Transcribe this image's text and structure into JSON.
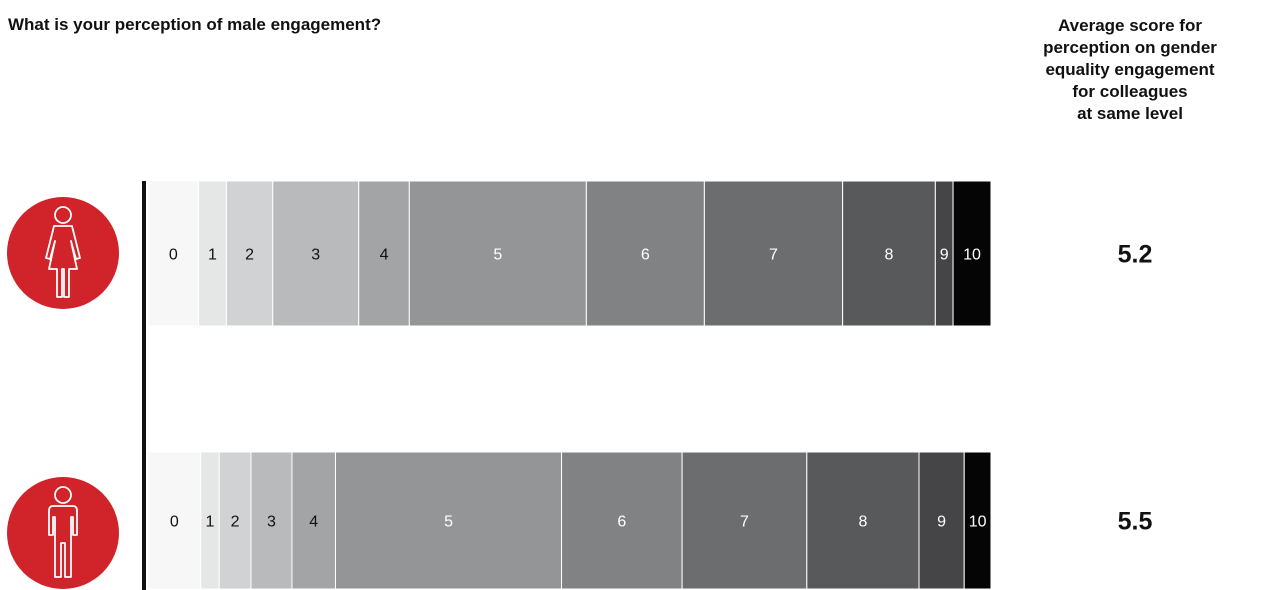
{
  "chart_data": {
    "type": "bar",
    "stacked": true,
    "orientation": "horizontal",
    "title": "What is your perception of male engagement?",
    "xlim": [
      0,
      100
    ],
    "grid": false,
    "categories": [
      "0",
      "1",
      "2",
      "3",
      "4",
      "5",
      "6",
      "7",
      "8",
      "9",
      "10"
    ],
    "rows": [
      {
        "icon": "female-person-icon",
        "values": [
          6.0,
          3.3,
          5.5,
          10.2,
          6.0,
          21.0,
          14.0,
          16.4,
          11.0,
          2.1,
          4.5
        ],
        "average": "5.2"
      },
      {
        "icon": "male-person-icon",
        "values": [
          6.3,
          2.2,
          3.8,
          4.9,
          5.2,
          27.0,
          14.4,
          14.9,
          13.4,
          5.4,
          3.2
        ],
        "average": "5.5"
      }
    ],
    "colors": [
      "#f7f7f7",
      "#e5e6e6",
      "#d1d2d3",
      "#b9babb",
      "#a3a4a6",
      "#939597",
      "#818284",
      "#6c6d6f",
      "#58595b",
      "#454547",
      "#050505"
    ],
    "label_colors": [
      "#111111",
      "#111111",
      "#111111",
      "#111111",
      "#111111",
      "#ffffff",
      "#ffffff",
      "#ffffff",
      "#ffffff",
      "#ffffff",
      "#ffffff"
    ],
    "average_header_lines": [
      "Average score for",
      "perception on gender",
      "equality engagement",
      "for colleagues",
      "at same level"
    ]
  },
  "accent_color": "#d1232a"
}
